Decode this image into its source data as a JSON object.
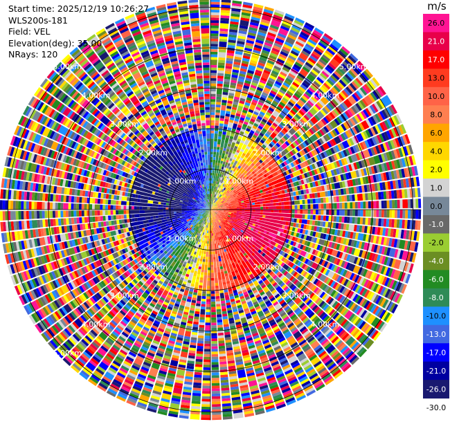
{
  "info": {
    "start_time": "Start time: 2025/12/19 10:26:27",
    "instrument": "WLS200s-181",
    "field": "Field: VEL",
    "elevation": "Elevation(deg): 35.00",
    "nrays": "NRays: 120"
  },
  "colorbar": {
    "unit": "m/s",
    "levels": [
      {
        "label": "26.0",
        "color": "#ff1493"
      },
      {
        "label": "21.0",
        "color": "#e8004a"
      },
      {
        "label": "17.0",
        "color": "#ff0000"
      },
      {
        "label": "13.0",
        "color": "#ff3b1f"
      },
      {
        "label": "10.0",
        "color": "#ff6347"
      },
      {
        "label": "8.0",
        "color": "#ff7f50"
      },
      {
        "label": "6.0",
        "color": "#ffa500"
      },
      {
        "label": "4.0",
        "color": "#ffd700"
      },
      {
        "label": "2.0",
        "color": "#ffff00"
      },
      {
        "label": "1.0",
        "color": "#d3d3d3"
      },
      {
        "label": "0.0",
        "color": "#778899"
      },
      {
        "label": "-1.0",
        "color": "#696969"
      },
      {
        "label": "-2.0",
        "color": "#9acd32"
      },
      {
        "label": "-4.0",
        "color": "#6b8e23"
      },
      {
        "label": "-6.0",
        "color": "#228b22"
      },
      {
        "label": "-8.0",
        "color": "#2e8b57"
      },
      {
        "label": "-10.0",
        "color": "#1e90ff"
      },
      {
        "label": "-13.0",
        "color": "#4169e1"
      },
      {
        "label": "-17.0",
        "color": "#0000ff"
      },
      {
        "label": "-21.0",
        "color": "#0000a0"
      },
      {
        "label": "-26.0",
        "color": "#191970"
      },
      {
        "label": "-30.0",
        "color": ""
      }
    ]
  },
  "chart_data": {
    "type": "heatmap",
    "projection": "polar PPI",
    "field": "VEL",
    "units": "m/s",
    "nrays": 120,
    "elevation_deg": 35.0,
    "range_rings_km": [
      1.0,
      2.0,
      3.0,
      4.0,
      5.0
    ],
    "range_labels": [
      "1.00km",
      "2.00km",
      "3.00km",
      "4.00km",
      "5.00km"
    ],
    "max_range_km": 5.2,
    "inner_region_km": 2.0,
    "inner_pattern": "dipole: receding (positive, red-pink) east/south-east, approaching (negative, blue) west, near-zero (yellow/green/grey) north and south",
    "outer_region": "noisy values across full color range",
    "value_range": [
      -30.0,
      26.0
    ]
  }
}
